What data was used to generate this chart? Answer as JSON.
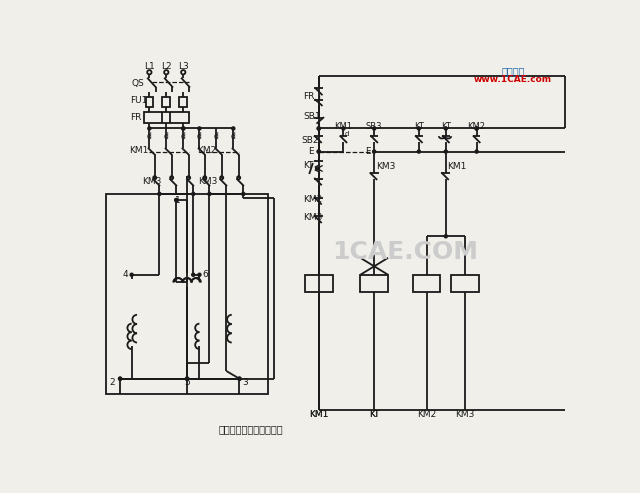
{
  "bg_color": "#f0efea",
  "line_color": "#1a1a1a",
  "watermark_text": "1CAE.COM",
  "watermark_color": "#cccccc",
  "brand_text": "仿真在線",
  "brand_color": "#2266aa",
  "url_text": "www.1CAE.com",
  "url_color": "#cc0000",
  "caption_text": "雙速電動機調速控制線路"
}
